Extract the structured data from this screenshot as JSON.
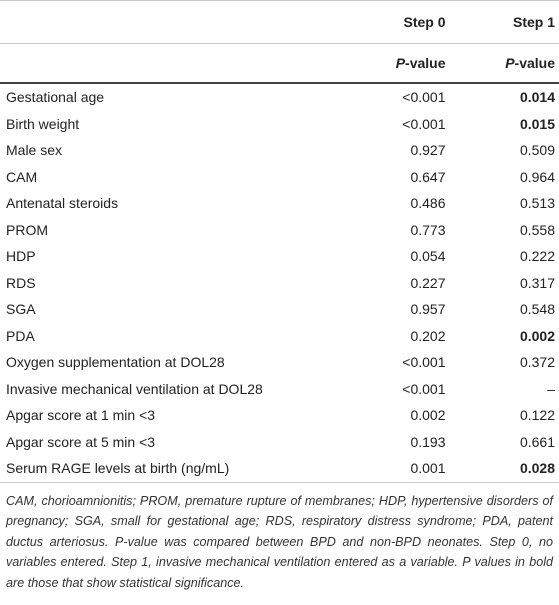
{
  "table": {
    "header": {
      "columns": [
        "",
        "Step 0",
        "Step 1"
      ],
      "subcolumns": [
        "",
        "P-value",
        "P-value"
      ]
    },
    "rows": [
      {
        "label": "Gestational age",
        "step0": "<0.001",
        "step1": "0.014",
        "step1_bold": true
      },
      {
        "label": "Birth weight",
        "step0": "<0.001",
        "step1": "0.015",
        "step1_bold": true
      },
      {
        "label": "Male sex",
        "step0": "0.927",
        "step1": "0.509",
        "step1_bold": false
      },
      {
        "label": "CAM",
        "step0": "0.647",
        "step1": "0.964",
        "step1_bold": false
      },
      {
        "label": "Antenatal steroids",
        "step0": "0.486",
        "step1": "0.513",
        "step1_bold": false
      },
      {
        "label": "PROM",
        "step0": "0.773",
        "step1": "0.558",
        "step1_bold": false
      },
      {
        "label": "HDP",
        "step0": "0.054",
        "step1": "0.222",
        "step1_bold": false
      },
      {
        "label": "RDS",
        "step0": "0.227",
        "step1": "0.317",
        "step1_bold": false
      },
      {
        "label": "SGA",
        "step0": "0.957",
        "step1": "0.548",
        "step1_bold": false
      },
      {
        "label": "PDA",
        "step0": "0.202",
        "step1": "0.002",
        "step1_bold": true
      },
      {
        "label": "Oxygen supplementation at DOL28",
        "step0": "<0.001",
        "step1": "0.372",
        "step1_bold": false
      },
      {
        "label": "Invasive mechanical ventilation at DOL28",
        "step0": "<0.001",
        "step1": "–",
        "step1_bold": false
      },
      {
        "label": "Apgar score at 1 min <3",
        "step0": "0.002",
        "step1": "0.122",
        "step1_bold": false
      },
      {
        "label": "Apgar score at 5 min <3",
        "step0": "0.193",
        "step1": "0.661",
        "step1_bold": false
      },
      {
        "label": "Serum RAGE levels at birth (ng/mL)",
        "step0": "0.001",
        "step1": "0.028",
        "step1_bold": true
      }
    ],
    "footnote": "CAM, chorioamnionitis; PROM, premature rupture of membranes; HDP, hypertensive disorders of pregnancy; SGA, small for gestational age; RDS, respiratory distress syndrome; PDA, patent ductus arteriosus. P-value was compared between BPD and non-BPD neonates. Step 0, no variables entered. Step 1, invasive mechanical ventilation entered as a variable. P values in bold are those that show statistical significance."
  }
}
